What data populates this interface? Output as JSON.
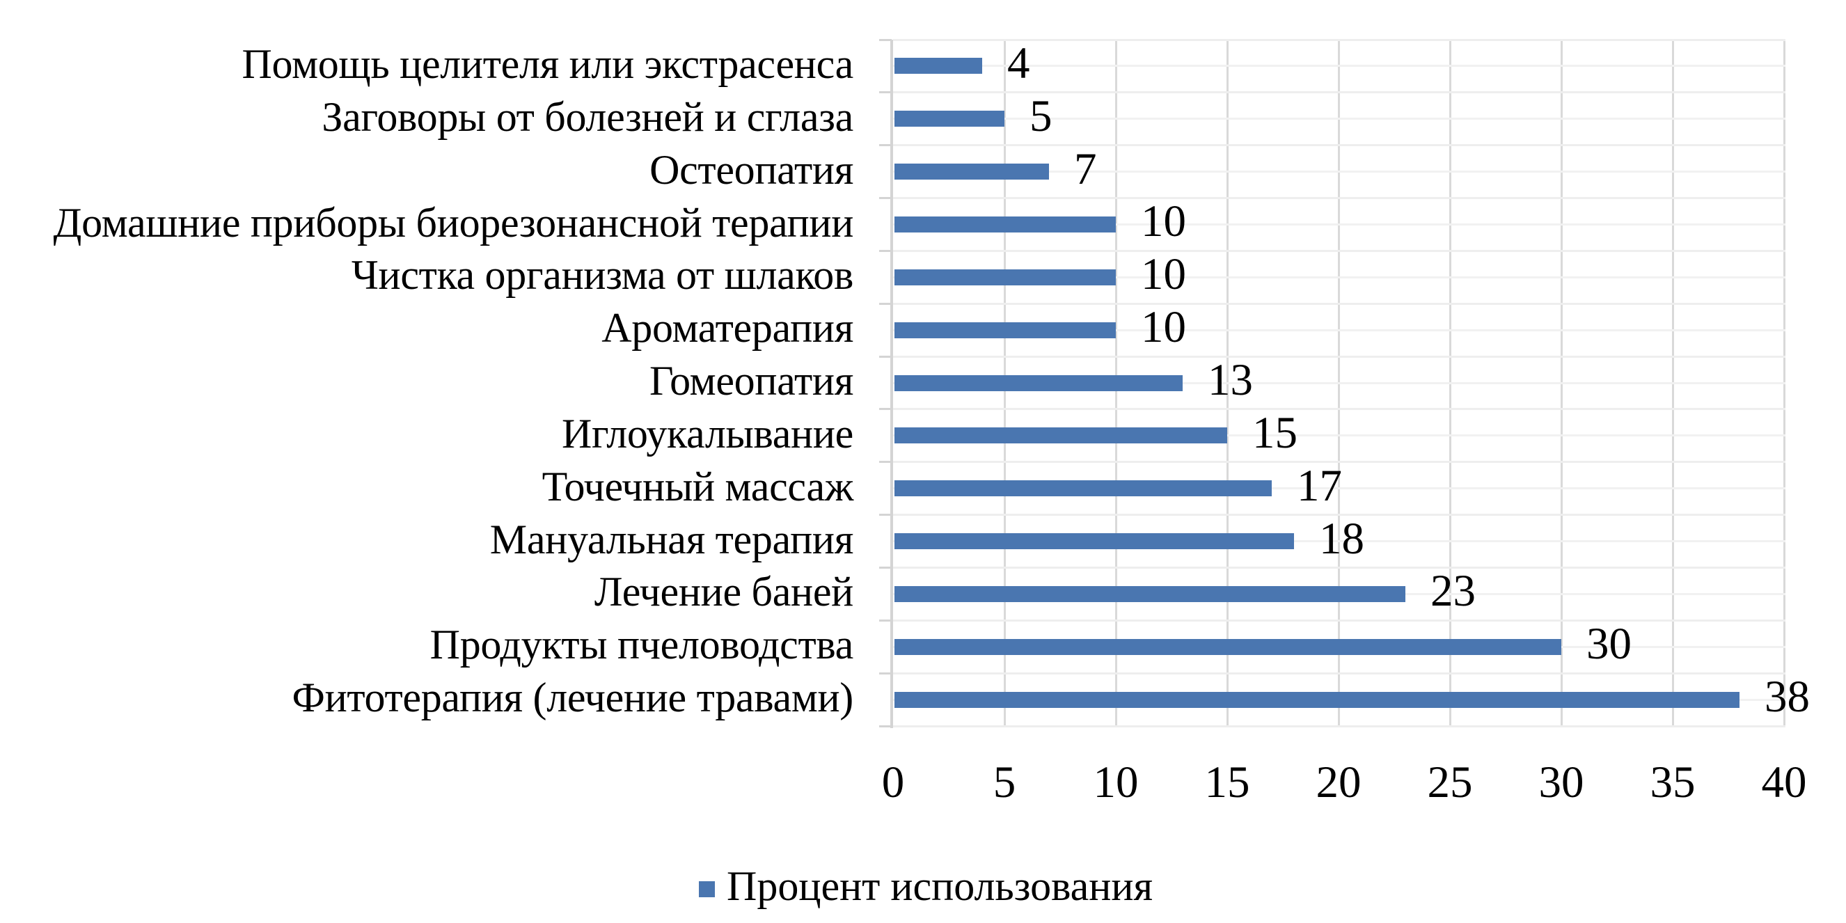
{
  "chart_data": {
    "type": "bar",
    "orientation": "horizontal",
    "title": "",
    "xlabel": "",
    "ylabel": "",
    "xlim": [
      0,
      40
    ],
    "x_ticks": [
      "0",
      "5",
      "10",
      "15",
      "20",
      "25",
      "30",
      "35",
      "40"
    ],
    "grid": true,
    "legend_position": "bottom",
    "categories": [
      "Помощь целителя или экстрасенса",
      "Заговоры от болезней и сглаза",
      "Остеопатия",
      "Домашние приборы биорезонансной терапии",
      "Чистка организма от шлаков",
      "Ароматерапия",
      "Гомеопатия",
      "Иглоукалывание",
      "Точечный массаж",
      "Мануальная терапия",
      "Лечение баней",
      "Продукты пчеловодства",
      "Фитотерапия (лечение травами)"
    ],
    "series": [
      {
        "name": "Процент использования",
        "color": "#4a76b0",
        "values": [
          4,
          5,
          7,
          10,
          10,
          10,
          13,
          15,
          17,
          18,
          23,
          30,
          38
        ]
      }
    ],
    "data_labels": [
      "4",
      "5",
      "7",
      "10",
      "10",
      "10",
      "13",
      "15",
      "17",
      "18",
      "23",
      "30",
      "38"
    ]
  },
  "legend": {
    "label": "Процент использования",
    "color": "#4a76b0"
  }
}
